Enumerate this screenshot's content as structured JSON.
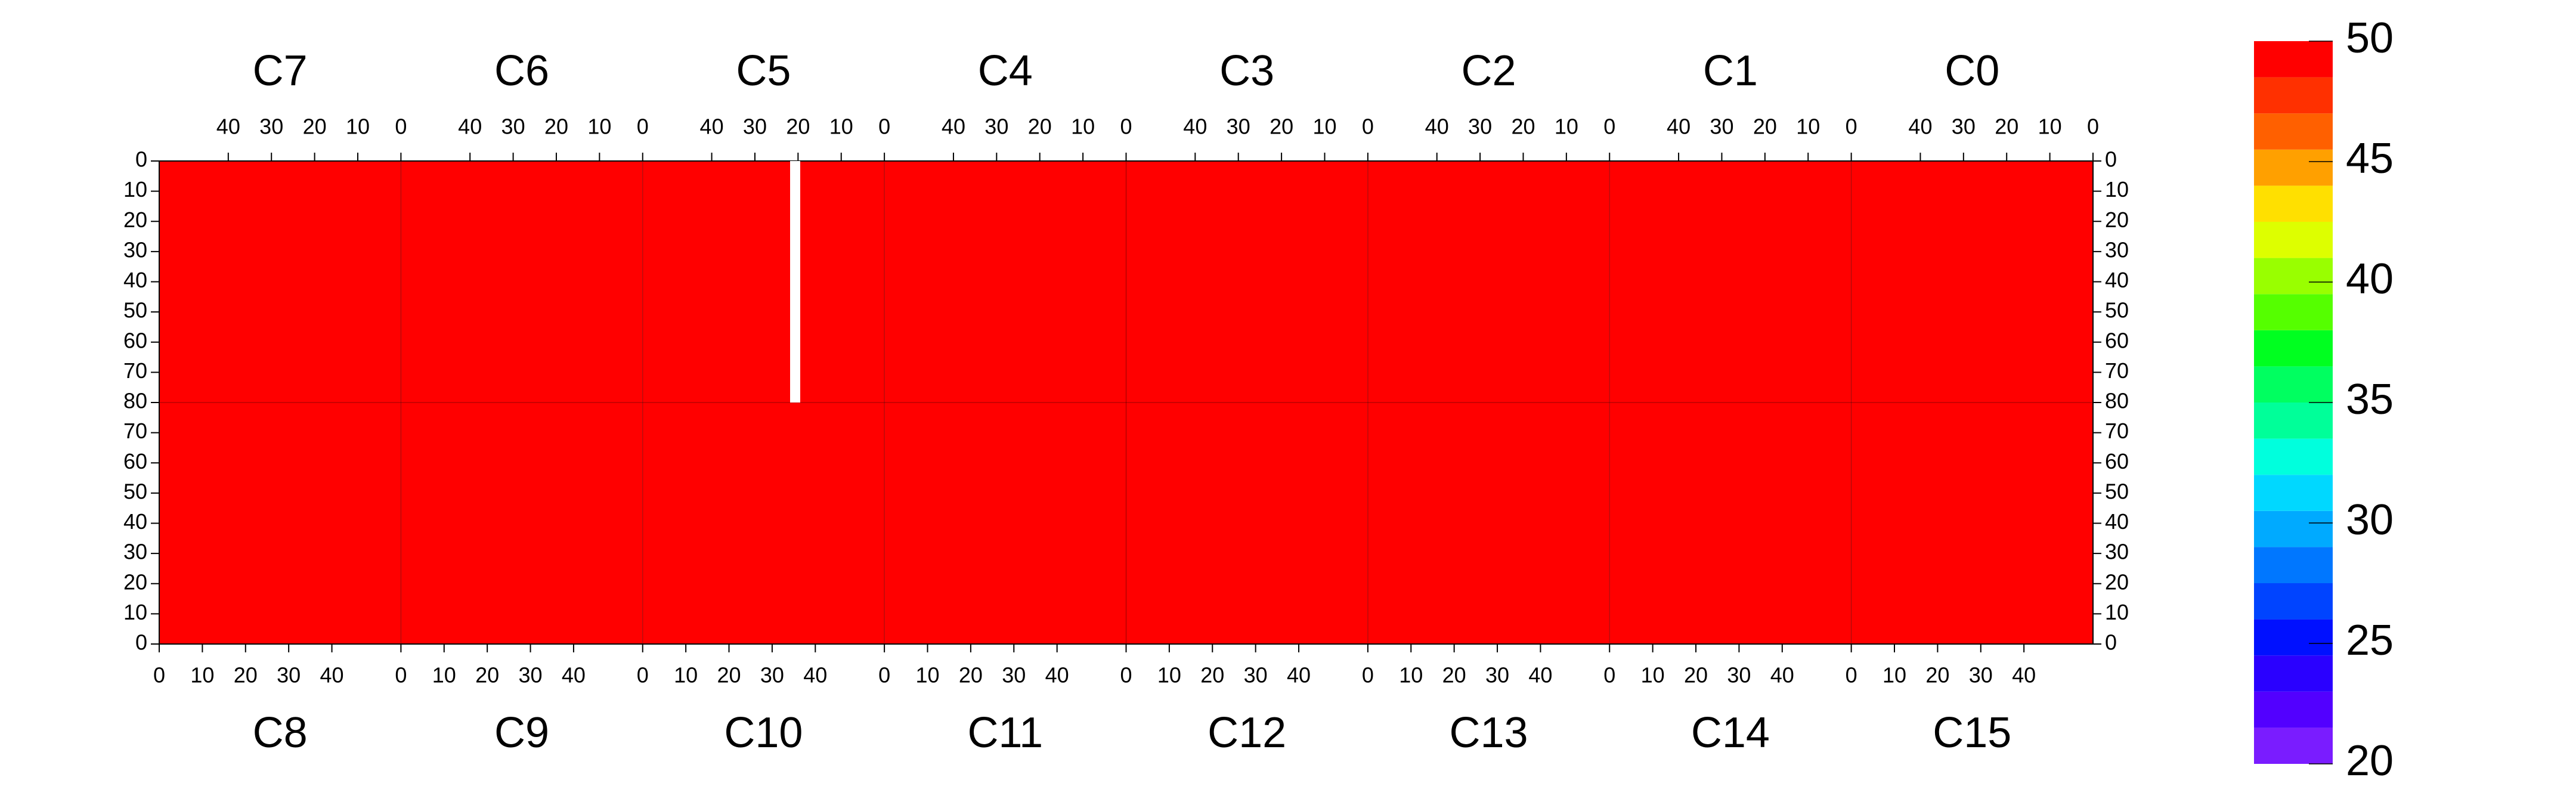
{
  "chart_data": {
    "type": "heatmap",
    "panels": [
      {
        "chips": [
          "C7",
          "C6",
          "C5",
          "C4",
          "C3",
          "C2",
          "C1",
          "C0"
        ],
        "values": [
          50,
          50,
          50,
          50,
          50,
          50,
          50,
          50
        ],
        "xlim": [
          56,
          0
        ],
        "xticks": [
          40,
          30,
          20,
          10,
          0
        ],
        "ylim": [
          0,
          80
        ],
        "yticks": [
          0,
          10,
          20,
          30,
          40,
          50,
          60,
          70,
          80
        ],
        "y_direction": "down"
      },
      {
        "chips": [
          "C8",
          "C9",
          "C10",
          "C11",
          "C12",
          "C13",
          "C14",
          "C15"
        ],
        "values": [
          50,
          50,
          50,
          50,
          50,
          50,
          50,
          50
        ],
        "xlim": [
          0,
          56
        ],
        "xticks": [
          0,
          10,
          20,
          30,
          40
        ],
        "ylim": [
          0,
          80
        ],
        "yticks": [
          0,
          10,
          20,
          30,
          40,
          50,
          60,
          70
        ],
        "y_direction": "up"
      }
    ],
    "colorbar": {
      "zlim": [
        20,
        50
      ],
      "ticks": [
        20,
        25,
        30,
        35,
        40,
        45,
        50
      ],
      "colors": [
        "#7a1cff",
        "#5200ff",
        "#2a00ff",
        "#0010ff",
        "#0044ff",
        "#0077ff",
        "#00aaff",
        "#00d8ff",
        "#00ffdd",
        "#00ff99",
        "#00ff60",
        "#00ff20",
        "#55ff00",
        "#99ff00",
        "#ddff00",
        "#ffe000",
        "#ffa000",
        "#ff6000",
        "#ff3000",
        "#ff0000"
      ]
    }
  }
}
